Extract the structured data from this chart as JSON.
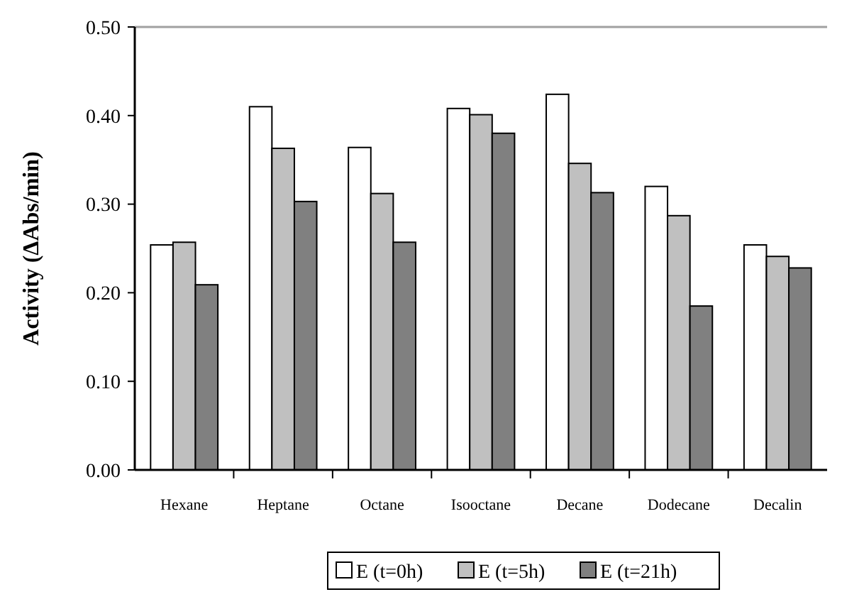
{
  "chart_data": {
    "type": "bar",
    "ylabel": "Activity (ΔAbs/min)",
    "categories": [
      "Hexane",
      "Heptane",
      "Octane",
      "Isooctane",
      "Decane",
      "Dodecane",
      "Decalin"
    ],
    "series": [
      {
        "name": "E (t=0h)",
        "color": "#ffffff",
        "values": [
          0.254,
          0.41,
          0.364,
          0.408,
          0.424,
          0.32,
          0.254
        ]
      },
      {
        "name": "E (t=5h)",
        "color": "#c0c0c0",
        "values": [
          0.257,
          0.363,
          0.312,
          0.401,
          0.346,
          0.287,
          0.241
        ]
      },
      {
        "name": "E (t=21h)",
        "color": "#808080",
        "values": [
          0.209,
          0.303,
          0.257,
          0.38,
          0.313,
          0.185,
          0.228
        ]
      }
    ],
    "ylim": [
      0,
      0.5
    ],
    "yticks": [
      {
        "value": 0,
        "label": "0.00"
      },
      {
        "value": 0.1,
        "label": "0.10"
      },
      {
        "value": 0.2,
        "label": "0.20"
      },
      {
        "value": 0.3,
        "label": "0.30"
      },
      {
        "value": 0.4,
        "label": "0.40"
      },
      {
        "value": 0.5,
        "label": "0.50"
      }
    ],
    "ref_lines": [
      {
        "axis": "y",
        "value": 0.5,
        "color": "#a0a0a0"
      }
    ],
    "legend": "bottom"
  }
}
